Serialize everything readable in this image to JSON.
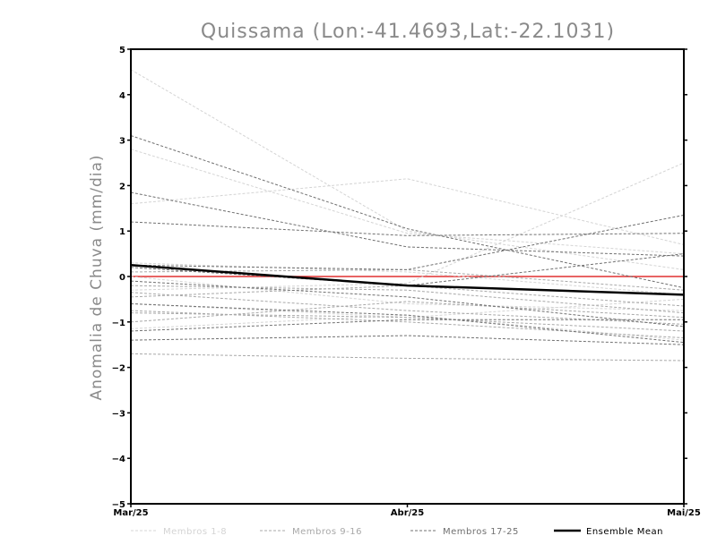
{
  "chart_data": {
    "type": "line",
    "title": "Quissama (Lon:-41.4693,Lat:-22.1031)",
    "xlabel": "",
    "ylabel": "Anomalia de Chuva (mm/dia)",
    "categories": [
      "Mar/25",
      "Abr/25",
      "Mai/25"
    ],
    "ylim": [
      -5,
      5
    ],
    "yticks": [
      -5,
      -4,
      -3,
      -2,
      -1,
      0,
      1,
      2,
      3,
      4,
      5
    ],
    "grid": false,
    "zero_line": {
      "value": 0,
      "color": "#e03030"
    },
    "legend_position": "bottom",
    "legend": [
      {
        "label": "Membros 1-8",
        "color": "#d4d4d4",
        "style": "dashed"
      },
      {
        "label": "Membros 9-16",
        "color": "#a8a8a8",
        "style": "dashed"
      },
      {
        "label": "Membros 17-25",
        "color": "#707070",
        "style": "dashed"
      },
      {
        "label": "Ensemble Mean",
        "color": "#000000",
        "style": "solid"
      }
    ],
    "series_groups": [
      {
        "group": "Membros 1-8",
        "color": "#d4d4d4",
        "members": [
          [
            4.55,
            1.0,
            0.15
          ],
          [
            1.6,
            2.15,
            0.7
          ],
          [
            2.8,
            0.95,
            0.5
          ],
          [
            0.3,
            0.1,
            -0.4
          ],
          [
            -0.3,
            -0.15,
            2.5
          ],
          [
            -0.6,
            -0.9,
            -0.5
          ],
          [
            0.0,
            -0.6,
            -0.75
          ],
          [
            -1.15,
            -0.85,
            -1.4
          ]
        ]
      },
      {
        "group": "Membros 9-16",
        "color": "#a8a8a8",
        "members": [
          [
            -0.2,
            -0.3,
            -0.8
          ],
          [
            -0.45,
            -0.2,
            -0.65
          ],
          [
            -0.35,
            -0.75,
            -1.05
          ],
          [
            -0.8,
            -0.9,
            -1.2
          ],
          [
            -1.0,
            -0.55,
            -0.9
          ],
          [
            -1.7,
            -1.8,
            -1.85
          ],
          [
            0.1,
            0.15,
            -0.3
          ],
          [
            -0.75,
            -1.0,
            -1.35
          ]
        ]
      },
      {
        "group": "Membros 17-25",
        "color": "#707070",
        "members": [
          [
            3.1,
            1.05,
            -0.25
          ],
          [
            1.85,
            0.65,
            0.45
          ],
          [
            1.2,
            0.9,
            0.95
          ],
          [
            0.25,
            0.15,
            1.35
          ],
          [
            0.2,
            -0.2,
            0.5
          ],
          [
            -0.6,
            -0.85,
            -1.45
          ],
          [
            -1.2,
            -0.95,
            -0.95
          ],
          [
            -1.4,
            -1.3,
            -1.5
          ],
          [
            -0.1,
            -0.45,
            -1.1
          ]
        ]
      }
    ],
    "ensemble_mean": {
      "name": "Ensemble Mean",
      "color": "#000000",
      "values": [
        0.25,
        -0.2,
        -0.4
      ]
    }
  }
}
